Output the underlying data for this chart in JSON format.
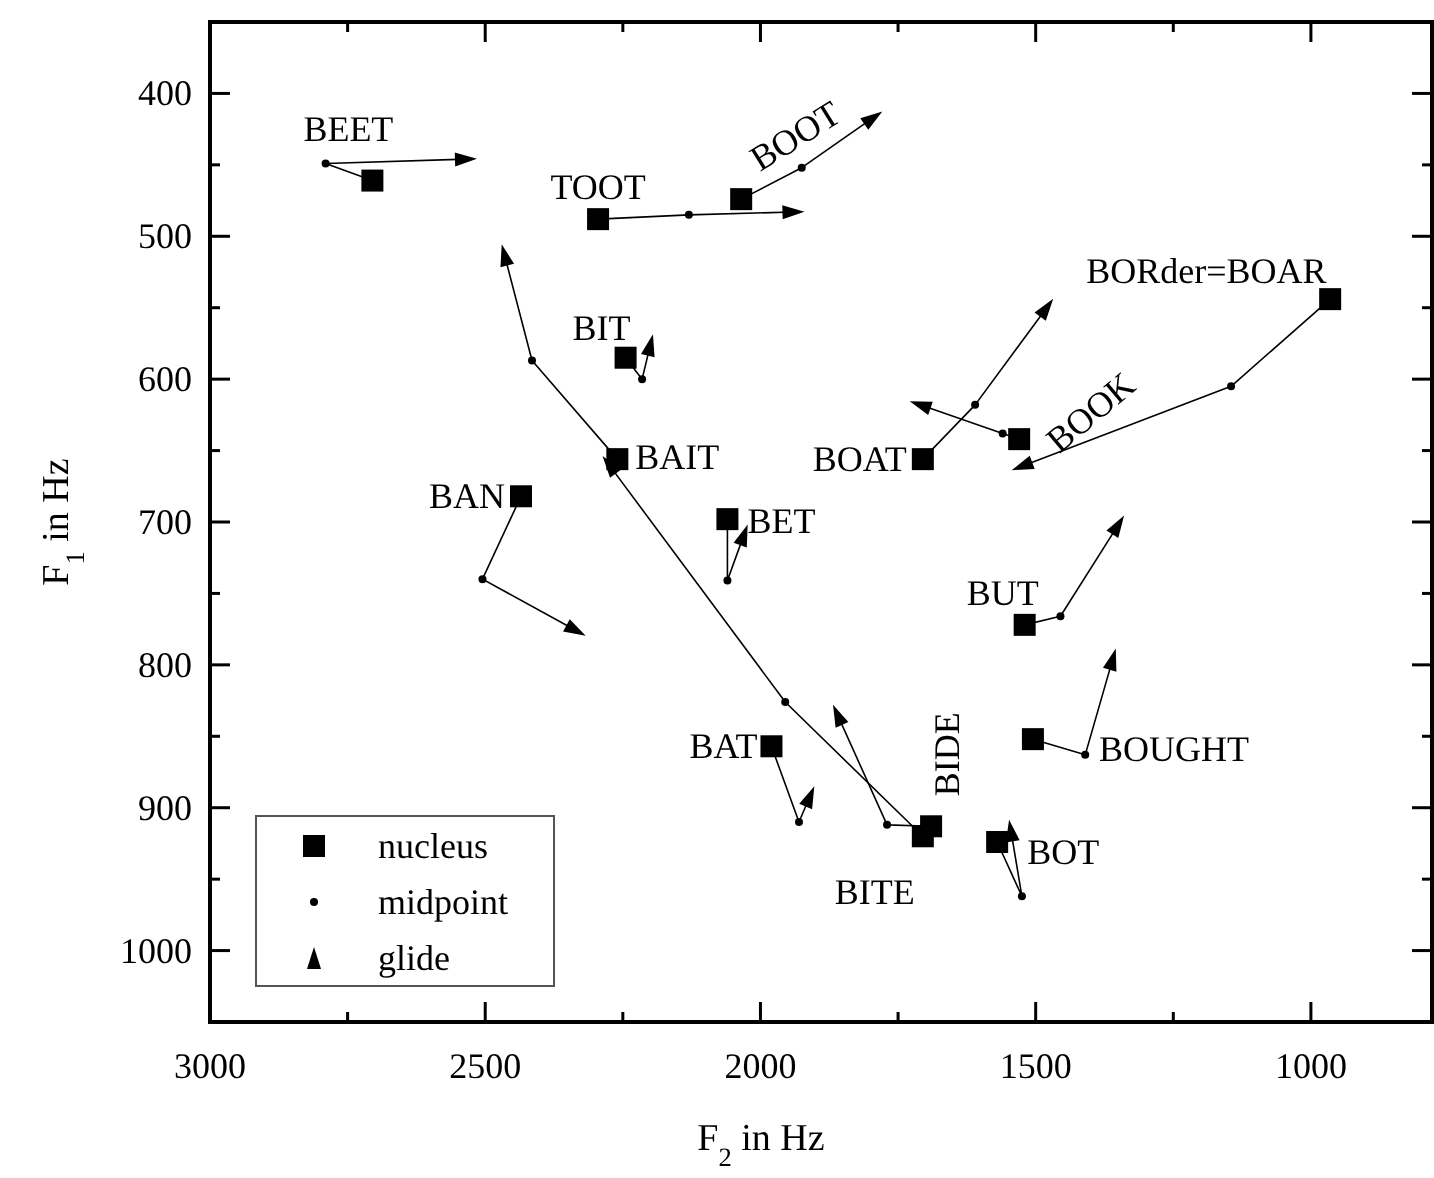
{
  "chart_data": {
    "type": "scatter",
    "xlabel": "F$_{2}$ in Hz",
    "ylabel": "F$_{1}$ in Hz",
    "xlim": [
      3000,
      780
    ],
    "ylim": [
      1050,
      350
    ],
    "xticks": [
      3000,
      {
        "value": 2750,
        "label": null
      },
      2500,
      {
        "value": 2250,
        "label": null
      },
      2000,
      {
        "value": 1750,
        "label": null
      },
      1500,
      {
        "value": 1250,
        "label": null
      },
      1000
    ],
    "yticks": [
      400,
      {
        "value": 450,
        "label": null
      },
      500,
      {
        "value": 550,
        "label": null
      },
      600,
      {
        "value": 650,
        "label": null
      },
      700,
      {
        "value": 750,
        "label": null
      },
      800,
      {
        "value": 850,
        "label": null
      },
      900,
      {
        "value": 950,
        "label": null
      },
      1000
    ],
    "legend": "bottom left",
    "series": [
      {
        "name": "nucleus",
        "marker": "square",
        "color": "#000000",
        "x": [
          2705,
          2295,
          2035,
          2245,
          2260,
          1705,
          1690,
          2435,
          1980,
          2060,
          1705,
          1530,
          965,
          1520,
          1505,
          1570
        ],
        "values": [
          461,
          488,
          474,
          585,
          656,
          920,
          913,
          682,
          857,
          698,
          656,
          642,
          544,
          772,
          852,
          924
        ]
      },
      {
        "name": "midpoint",
        "marker": "circle",
        "color": "#000000",
        "x": [
          2790,
          2130,
          1925,
          2215,
          2415,
          1955,
          1770,
          2505,
          1930,
          2060,
          1610,
          1560,
          1145,
          1455,
          1410,
          1525
        ],
        "values": [
          449,
          485,
          452,
          600,
          587,
          826,
          912,
          740,
          910,
          741,
          618,
          638,
          605,
          766,
          863,
          962
        ]
      },
      {
        "name": "glide",
        "marker": "triangle",
        "color": "#000000",
        "x": [
          2535,
          1940,
          1795,
          2200,
          2465,
          2275,
          1860,
          2335,
          1910,
          2030,
          1480,
          1710,
          1525,
          1350,
          1360,
          1545
        ],
        "values": [
          446,
          483,
          417,
          576,
          513,
          660,
          835,
          776,
          892,
          709,
          550,
          618,
          661,
          702,
          796,
          916
        ]
      }
    ],
    "annotations": [
      {
        "text": "BEET",
        "x": 2705,
        "y": 461
      },
      {
        "text": "TOOT",
        "x": 2295,
        "y": 488
      },
      {
        "text": "BOOT",
        "x": 2035,
        "y": 474
      },
      {
        "text": "BIT",
        "x": 2245,
        "y": 585
      },
      {
        "text": "BAIT",
        "x": 2260,
        "y": 656
      },
      {
        "text": "BITE",
        "x": 1705,
        "y": 920
      },
      {
        "text": "BIDE",
        "x": 1690,
        "y": 913
      },
      {
        "text": "BAN",
        "x": 2435,
        "y": 682
      },
      {
        "text": "BAT",
        "x": 1980,
        "y": 857
      },
      {
        "text": "BET",
        "x": 2060,
        "y": 698
      },
      {
        "text": "BOAT",
        "x": 1705,
        "y": 656
      },
      {
        "text": "BOOK",
        "x": 1530,
        "y": 642
      },
      {
        "text": "BORder=BOAR",
        "x": 965,
        "y": 544
      },
      {
        "text": "BUT",
        "x": 1520,
        "y": 772
      },
      {
        "text": "BOUGHT",
        "x": 1505,
        "y": 852
      },
      {
        "text": "BOT",
        "x": 1570,
        "y": 924
      }
    ]
  }
}
